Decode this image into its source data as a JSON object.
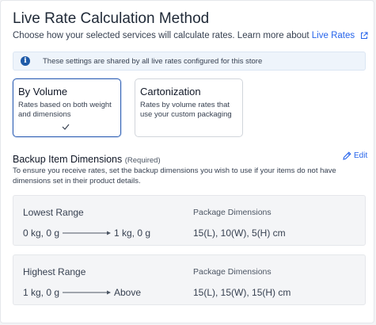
{
  "header": {
    "title": "Live Rate Calculation Method",
    "subtitle": "Choose how your selected services will calculate rates. Learn more about ",
    "link_label": "Live Rates"
  },
  "banner": {
    "text": "These settings are shared by all live rates configured for this store",
    "icon": "info-icon"
  },
  "options": [
    {
      "title": "By Volume",
      "description": "Rates based on both weight and dimensions",
      "selected": true
    },
    {
      "title": "Cartonization",
      "description": "Rates by volume rates that use your custom packaging",
      "selected": false
    }
  ],
  "backup": {
    "title": "Backup Item Dimensions",
    "required": "(Required)",
    "edit_label": "Edit",
    "description": "To ensure you receive rates, set the backup dimensions you wish to use if your items do not have dimensions set in their product details."
  },
  "ranges": [
    {
      "label": "Lowest Range",
      "from": "0 kg, 0 g",
      "to": "1 kg, 0 g",
      "package_label": "Package Dimensions",
      "package_value": "15(L), 10(W), 5(H) cm"
    },
    {
      "label": "Highest Range",
      "from": "1 kg, 0 g",
      "to": "Above",
      "package_label": "Package Dimensions",
      "package_value": "15(L), 15(W), 15(H) cm"
    }
  ],
  "colors": {
    "accent": "#2563eb",
    "selected_border": "#2f5fb3",
    "info": "#1e5aa8"
  }
}
